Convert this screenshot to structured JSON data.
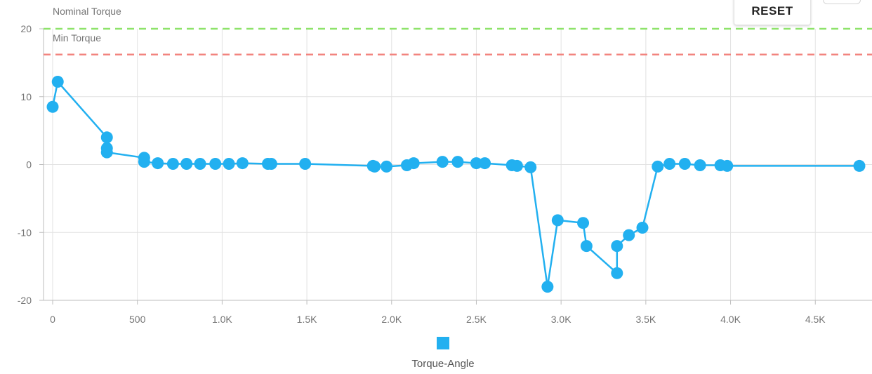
{
  "toolbar": {
    "reset_label": "RESET"
  },
  "chart_data": {
    "type": "line",
    "title": "",
    "xlabel": "",
    "ylabel": "",
    "xlim": [
      -100,
      4800
    ],
    "ylim": [
      -20,
      20
    ],
    "x_ticks": [
      0,
      500,
      1000,
      1500,
      2000,
      2500,
      3000,
      3500,
      4000,
      4500
    ],
    "x_tick_labels": [
      "0",
      "500",
      "1.0K",
      "1.5K",
      "2.0K",
      "2.5K",
      "3.0K",
      "3.5K",
      "4.0K",
      "4.5K"
    ],
    "y_ticks": [
      -20,
      -10,
      0,
      10,
      20
    ],
    "y_tick_labels": [
      "-20",
      "-10",
      "0",
      "10",
      "20"
    ],
    "grid": true,
    "legend_position": "bottom-center",
    "reference_lines": [
      {
        "label": "Nominal Torque",
        "y": 20,
        "color": "#8ee36a"
      },
      {
        "label": "Min Torque",
        "y": 16.2,
        "color": "#f2847f"
      }
    ],
    "series": [
      {
        "name": "Torque-Angle",
        "color": "#22b0f0",
        "x": [
          0,
          30,
          320,
          320,
          320,
          540,
          540,
          620,
          710,
          790,
          870,
          960,
          1040,
          1120,
          1270,
          1290,
          1490,
          1890,
          1900,
          1970,
          2090,
          2130,
          2300,
          2390,
          2500,
          2550,
          2710,
          2740,
          2820,
          2920,
          2980,
          3130,
          3150,
          3330,
          3330,
          3400,
          3480,
          3570,
          3640,
          3730,
          3820,
          3940,
          3980,
          4760
        ],
        "y": [
          8.5,
          12.2,
          4,
          2.4,
          1.8,
          1,
          0.4,
          0.2,
          0.1,
          0.1,
          0.1,
          0.1,
          0.1,
          0.2,
          0.1,
          0.1,
          0.1,
          -0.2,
          -0.3,
          -0.3,
          -0.1,
          0.2,
          0.4,
          0.4,
          0.2,
          0.2,
          -0.1,
          -0.2,
          -0.4,
          -18,
          -8.2,
          -8.6,
          -12,
          -16,
          -12,
          -10.4,
          -9.3,
          -0.3,
          0.1,
          0.1,
          -0.1,
          -0.1,
          -0.2,
          -0.2
        ]
      }
    ]
  }
}
